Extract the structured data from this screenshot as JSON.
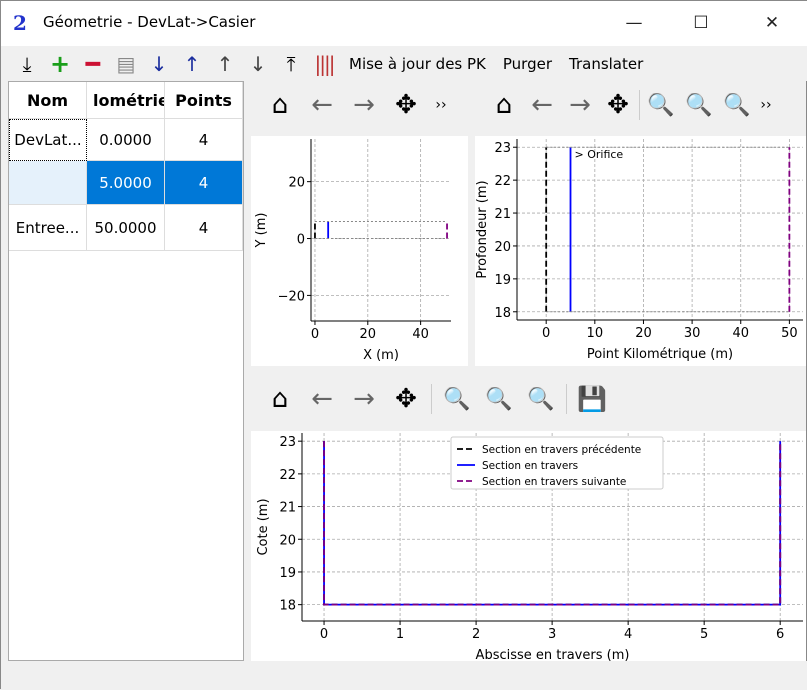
{
  "window": {
    "title": "Géometrie - DevLat->Casier",
    "app_icon": "PAM HYR 2",
    "minimize": "—",
    "maximize": "☐",
    "close": "✕"
  },
  "toolbar": {
    "icons": [
      "import-icon",
      "add-icon",
      "remove-icon",
      "edit-icon",
      "sort-ascending-icon",
      "sort-descending-icon",
      "move-up-icon",
      "move-down-icon",
      "export-icon",
      "generate-icon"
    ],
    "update_pk": "Mise à jour des PK",
    "purge": "Purger",
    "translate": "Translater"
  },
  "table": {
    "headers": [
      "Nom",
      "lométrie",
      "Points"
    ],
    "rows": [
      {
        "name": "DevLat...",
        "km": "0.0000",
        "points": "4",
        "selected": false
      },
      {
        "name": "",
        "km": "5.0000",
        "points": "4",
        "selected": true
      },
      {
        "name": "Entree...",
        "km": "50.0000",
        "points": "4",
        "selected": false
      }
    ]
  },
  "nav_toolbar": {
    "home": "⌂",
    "back": "←",
    "forward": "→",
    "pan": "✥",
    "zoom": "🔍",
    "more": "››",
    "save": "💾"
  },
  "colors": {
    "previous": "#000000",
    "current": "#0000ff",
    "next": "#800080",
    "selected_row": "#0078d7"
  },
  "chart_data": [
    {
      "type": "line",
      "xlabel": "X (m)",
      "ylabel": "Y (m)",
      "xlim": [
        -1.5,
        51.5
      ],
      "ylim": [
        -29,
        35
      ],
      "xticks": [
        0,
        20,
        40
      ],
      "yticks": [
        -20,
        0,
        20
      ],
      "grid": true,
      "series": [
        {
          "style": "dashed",
          "color": "#000000",
          "x": [
            0,
            0
          ],
          "y": [
            0,
            6
          ]
        },
        {
          "style": "solid",
          "color": "#0000ff",
          "x": [
            5,
            5
          ],
          "y": [
            0,
            6
          ]
        },
        {
          "style": "dashed",
          "color": "#800080",
          "x": [
            50,
            50
          ],
          "y": [
            0,
            6
          ]
        },
        {
          "style": "dotted",
          "color": "#888888",
          "x": [
            0,
            50
          ],
          "y": [
            6,
            6
          ]
        },
        {
          "style": "dotted",
          "color": "#888888",
          "x": [
            0,
            50
          ],
          "y": [
            0,
            0
          ]
        }
      ]
    },
    {
      "type": "line",
      "xlabel": "Point Kilométrique (m)",
      "ylabel": "Profondeur (m)",
      "xlim": [
        -6,
        52.8
      ],
      "ylim": [
        17.75,
        23.25
      ],
      "xticks": [
        0,
        10,
        20,
        30,
        40,
        50
      ],
      "yticks": [
        18,
        19,
        20,
        21,
        22,
        23
      ],
      "grid": true,
      "annotations": [
        {
          "text": "> Orifice",
          "x": 5,
          "y": 23
        }
      ],
      "series": [
        {
          "style": "dashed",
          "color": "#000000",
          "x": [
            0,
            0
          ],
          "y": [
            18,
            23
          ]
        },
        {
          "style": "solid",
          "color": "#0000ff",
          "x": [
            5,
            5
          ],
          "y": [
            18,
            23
          ]
        },
        {
          "style": "dashed",
          "color": "#800080",
          "x": [
            50,
            50
          ],
          "y": [
            18,
            23
          ]
        },
        {
          "style": "dotted",
          "color": "#888888",
          "x": [
            0,
            50
          ],
          "y": [
            23,
            23
          ]
        },
        {
          "style": "dotted",
          "color": "#888888",
          "x": [
            0,
            50
          ],
          "y": [
            18,
            18
          ]
        }
      ]
    },
    {
      "type": "line",
      "xlabel": "Abscisse en travers (m)",
      "ylabel": "Cote (m)",
      "xlim": [
        -0.29,
        6.3
      ],
      "ylim": [
        17.5,
        23.25
      ],
      "xticks": [
        0,
        1,
        2,
        3,
        4,
        5,
        6
      ],
      "yticks": [
        18,
        19,
        20,
        21,
        22,
        23
      ],
      "grid": true,
      "legend": "top-center",
      "series": [
        {
          "name": "Section en travers précédente",
          "style": "dashed",
          "color": "#000000",
          "x": [
            0,
            0,
            6,
            6
          ],
          "y": [
            23,
            18,
            18,
            23
          ]
        },
        {
          "name": "Section en travers",
          "style": "solid",
          "color": "#0000ff",
          "x": [
            0,
            0,
            6,
            6
          ],
          "y": [
            23,
            18,
            18,
            23
          ]
        },
        {
          "name": "Section en travers suivante",
          "style": "dashed",
          "color": "#800080",
          "x": [
            0,
            0,
            6,
            6
          ],
          "y": [
            23,
            18,
            18,
            23
          ]
        }
      ]
    }
  ]
}
